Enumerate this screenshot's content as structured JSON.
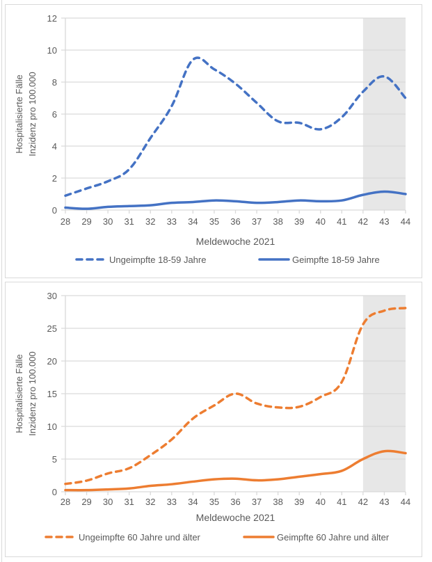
{
  "chart_data": [
    {
      "type": "line",
      "title": "",
      "xlabel": "Meldewoche 2021",
      "ylabel": [
        "Hospitalisierte Fälle",
        "Inzidenz pro 100.000"
      ],
      "x": [
        28,
        29,
        30,
        31,
        32,
        33,
        34,
        35,
        36,
        37,
        38,
        39,
        40,
        41,
        42,
        43,
        44
      ],
      "ylim": [
        0,
        12
      ],
      "yticks": [
        0,
        2,
        4,
        6,
        8,
        10,
        12
      ],
      "grid": true,
      "shaded_range": [
        42,
        44
      ],
      "legend_position": "bottom",
      "series": [
        {
          "name": "Ungeimpfte 18-59 Jahre",
          "style": "dashed",
          "color": "#4472c4",
          "values": [
            0.9,
            1.35,
            1.8,
            2.55,
            4.5,
            6.5,
            9.4,
            8.8,
            7.9,
            6.7,
            5.55,
            5.45,
            5.05,
            5.8,
            7.4,
            8.35,
            7.0
          ]
        },
        {
          "name": "Geimpfte 18-59 Jahre",
          "style": "solid",
          "color": "#4472c4",
          "values": [
            0.15,
            0.08,
            0.2,
            0.25,
            0.3,
            0.45,
            0.5,
            0.6,
            0.55,
            0.45,
            0.5,
            0.6,
            0.55,
            0.6,
            0.95,
            1.15,
            1.0
          ]
        }
      ]
    },
    {
      "type": "line",
      "title": "",
      "xlabel": "Meldewoche 2021",
      "ylabel": [
        "Hospitalisierte Fälle",
        "Inzidenz pro 100.000"
      ],
      "x": [
        28,
        29,
        30,
        31,
        32,
        33,
        34,
        35,
        36,
        37,
        38,
        39,
        40,
        41,
        42,
        43,
        44
      ],
      "ylim": [
        0,
        30
      ],
      "yticks": [
        0,
        5,
        10,
        15,
        20,
        25,
        30
      ],
      "grid": true,
      "shaded_range": [
        42,
        44
      ],
      "legend_position": "bottom",
      "series": [
        {
          "name": "Ungeimpfte 60 Jahre und älter",
          "style": "dashed",
          "color": "#ed7d31",
          "values": [
            1.2,
            1.7,
            2.8,
            3.6,
            5.6,
            8.0,
            11.2,
            13.2,
            15.0,
            13.5,
            12.9,
            13.0,
            14.5,
            16.8,
            25.6,
            27.7,
            28.1
          ]
        },
        {
          "name": "Geimpfte 60 Jahre und älter",
          "style": "solid",
          "color": "#ed7d31",
          "values": [
            0.25,
            0.25,
            0.35,
            0.5,
            0.9,
            1.15,
            1.55,
            1.9,
            2.0,
            1.75,
            1.9,
            2.3,
            2.7,
            3.2,
            5.0,
            6.2,
            5.9
          ]
        }
      ]
    }
  ],
  "colors": {
    "grid": "#d9d9d9",
    "shade": "#e7e7e7",
    "text": "#595959"
  }
}
